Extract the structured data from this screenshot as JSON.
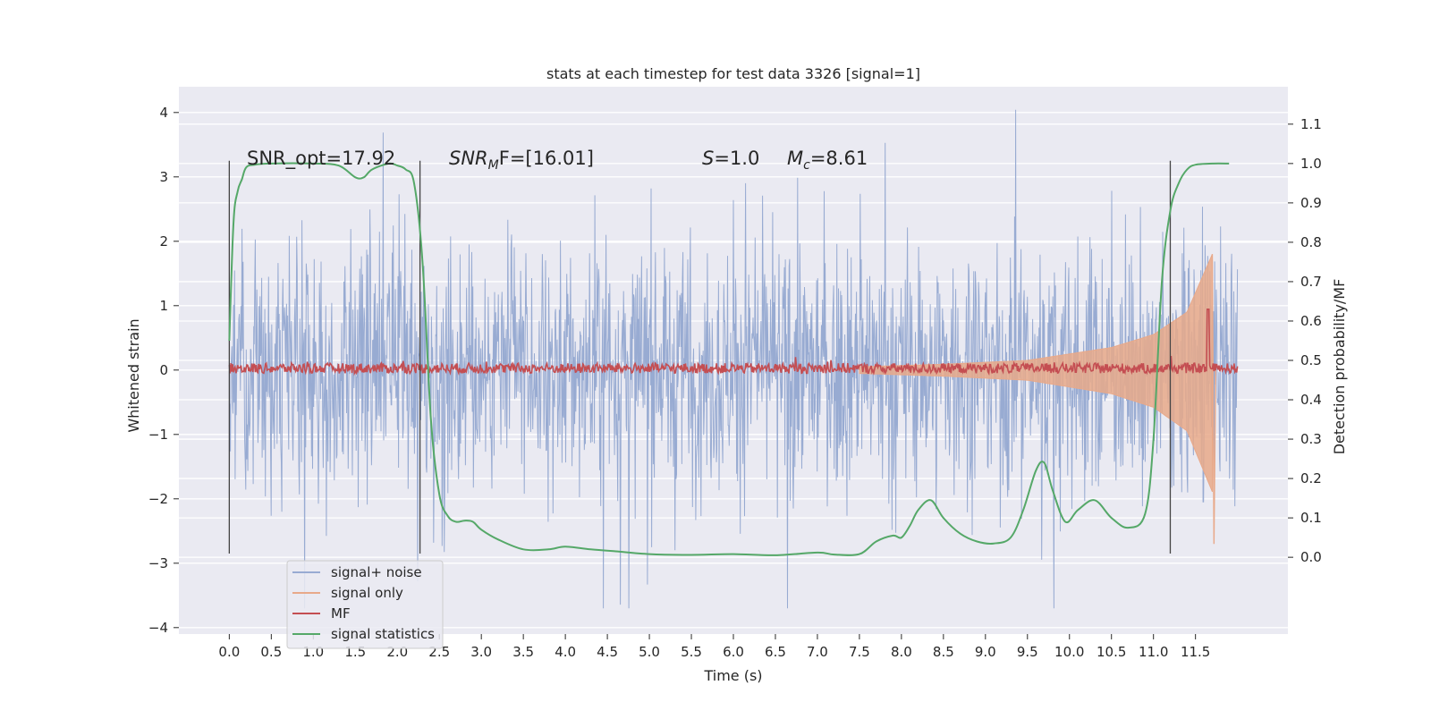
{
  "chart_data": {
    "type": "line",
    "title": "stats at each timestep for test data 3326 [signal=1]",
    "xlabel": "Time (s)",
    "ylabel_left": "Whitened strain",
    "ylabel_right": "Detection probability/MF",
    "xlim": [
      -0.6,
      12.6
    ],
    "ylim_left": [
      -4.1,
      4.4
    ],
    "ylim_right": [
      -0.195,
      1.195
    ],
    "x_ticks": [
      "0.0",
      "0.5",
      "1.0",
      "1.5",
      "2.0",
      "2.5",
      "3.0",
      "3.5",
      "4.0",
      "4.5",
      "5.0",
      "5.5",
      "6.0",
      "6.5",
      "7.0",
      "7.5",
      "8.0",
      "8.5",
      "9.0",
      "9.5",
      "10.0",
      "10.5",
      "11.0",
      "11.5"
    ],
    "y_ticks_left": [
      "4",
      "3",
      "2",
      "1",
      "0",
      "−1",
      "−2",
      "−3",
      "−4"
    ],
    "y_ticks_right": [
      "1.1",
      "1.0",
      "0.9",
      "0.8",
      "0.7",
      "0.6",
      "0.5",
      "0.4",
      "0.3",
      "0.2",
      "0.1",
      "0.0"
    ],
    "grid": true,
    "legend_position": "lower-left",
    "annotations": {
      "snr_opt": "SNR_opt=17.92",
      "snr_mf_italic": "SNR",
      "snr_mf_sub": "M",
      "snr_mf_rest": "F=[16.01]",
      "s_label": "S",
      "s_value": "=1.0",
      "mc_label": "M",
      "mc_sub": "c",
      "mc_value": "=8.61"
    },
    "vertical_lines_x": [
      0.0,
      2.27,
      11.2
    ],
    "colors": {
      "signal_noise": "#98abd2",
      "signal_only": "#e8a98a",
      "mf": "#c44e52",
      "stat": "#55a868",
      "vline": "#444444",
      "plot_bg": "#eaeaf2"
    },
    "series": [
      {
        "name": "signal+ noise",
        "axis": "left",
        "x_range": [
          0.0,
          12.0
        ],
        "typical_band": [
          -1.4,
          1.4
        ],
        "extremes": [
          -3.7,
          4.1
        ]
      },
      {
        "name": "signal only",
        "axis": "left",
        "x_range": [
          7.5,
          11.7
        ],
        "envelope": [
          [
            7.5,
            0.05
          ],
          [
            8.5,
            0.09
          ],
          [
            9.5,
            0.15
          ],
          [
            10.5,
            0.35
          ],
          [
            11.0,
            0.55
          ],
          [
            11.4,
            0.9
          ],
          [
            11.6,
            1.5
          ],
          [
            11.7,
            1.8
          ]
        ]
      },
      {
        "name": "MF",
        "axis": "right",
        "x_range": [
          0.0,
          12.0
        ],
        "baseline": 0.48,
        "peak": {
          "x": 11.65,
          "y": 0.63
        }
      },
      {
        "name": "signal statistics",
        "axis": "right",
        "x": [
          0.0,
          0.05,
          0.1,
          0.15,
          0.2,
          0.3,
          0.5,
          1.0,
          1.3,
          1.5,
          1.6,
          1.7,
          1.9,
          2.0,
          2.1,
          2.2,
          2.3,
          2.4,
          2.5,
          2.6,
          2.7,
          2.8,
          2.9,
          3.0,
          3.2,
          3.5,
          3.8,
          4.0,
          4.3,
          4.6,
          5.0,
          5.5,
          6.0,
          6.5,
          7.0,
          7.2,
          7.5,
          7.7,
          7.9,
          8.0,
          8.1,
          8.2,
          8.35,
          8.5,
          8.7,
          8.9,
          9.1,
          9.3,
          9.45,
          9.6,
          9.7,
          9.8,
          9.95,
          10.1,
          10.3,
          10.5,
          10.7,
          10.9,
          11.0,
          11.1,
          11.2,
          11.3,
          11.4,
          11.5,
          11.7,
          11.9
        ],
        "y": [
          0.55,
          0.85,
          0.93,
          0.96,
          0.99,
          0.997,
          1.0,
          1.0,
          0.995,
          0.965,
          0.965,
          0.985,
          1.0,
          0.995,
          0.985,
          0.95,
          0.75,
          0.35,
          0.16,
          0.105,
          0.09,
          0.093,
          0.09,
          0.07,
          0.045,
          0.02,
          0.02,
          0.027,
          0.02,
          0.015,
          0.008,
          0.006,
          0.008,
          0.005,
          0.012,
          0.007,
          0.008,
          0.04,
          0.055,
          0.05,
          0.08,
          0.12,
          0.145,
          0.1,
          0.06,
          0.04,
          0.035,
          0.05,
          0.12,
          0.22,
          0.24,
          0.17,
          0.09,
          0.12,
          0.145,
          0.1,
          0.075,
          0.11,
          0.3,
          0.7,
          0.88,
          0.95,
          0.985,
          0.997,
          1.0,
          1.0
        ]
      }
    ]
  }
}
